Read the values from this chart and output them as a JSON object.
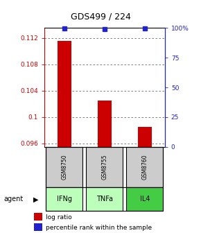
{
  "title": "GDS499 / 224",
  "samples": [
    "GSM8750",
    "GSM8755",
    "GSM8760"
  ],
  "agents": [
    "IFNg",
    "TNFa",
    "IL4"
  ],
  "log_ratios": [
    0.1115,
    0.1025,
    0.0985
  ],
  "percentile_ranks": [
    99.5,
    99.2,
    99.6
  ],
  "ylim_left": [
    0.0955,
    0.1135
  ],
  "ylim_right": [
    0,
    100
  ],
  "yticks_left": [
    0.096,
    0.1,
    0.104,
    0.108,
    0.112
  ],
  "ytick_labels_left": [
    "0.096",
    "0.1",
    "0.104",
    "0.108",
    "0.112"
  ],
  "ytick_labels_right": [
    "0",
    "25",
    "50",
    "75",
    "100%"
  ],
  "yticks_right": [
    0,
    25,
    50,
    75,
    100
  ],
  "bar_color": "#cc0000",
  "square_color": "#2222cc",
  "agent_colors": [
    "#bbffbb",
    "#bbffbb",
    "#44cc44"
  ],
  "sample_bg": "#cccccc",
  "grid_color": "#666666",
  "title_color": "#000000",
  "left_axis_color": "#cc0000",
  "right_axis_color": "#2222cc",
  "legend_items": [
    "log ratio",
    "percentile rank within the sample"
  ],
  "bar_width": 0.35
}
